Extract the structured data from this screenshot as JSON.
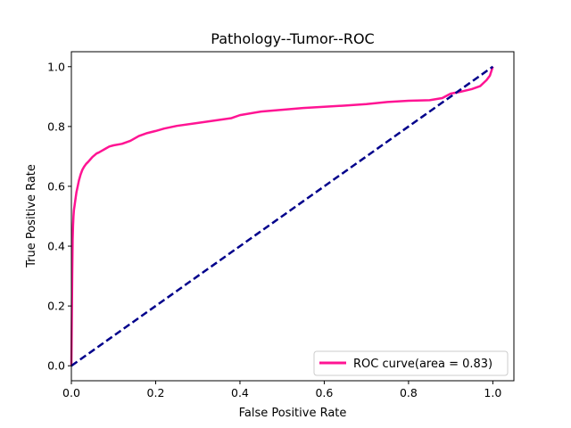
{
  "chart_data": {
    "type": "line",
    "title": "Pathology--Tumor--ROC",
    "xlabel": "False Positive Rate",
    "ylabel": "True Positive Rate",
    "xlim": [
      0.0,
      1.05
    ],
    "ylim": [
      -0.05,
      1.05
    ],
    "xticks": [
      "0.0",
      "0.2",
      "0.4",
      "0.6",
      "0.8",
      "1.0"
    ],
    "yticks": [
      "0.0",
      "0.2",
      "0.4",
      "0.6",
      "0.8",
      "1.0"
    ],
    "grid": false,
    "legend_position": "lower right",
    "series": [
      {
        "name": "ROC curve(area = 0.83)",
        "color": "#ff1493",
        "style": "solid",
        "x": [
          0.0,
          0.002,
          0.003,
          0.004,
          0.005,
          0.006,
          0.008,
          0.01,
          0.012,
          0.015,
          0.018,
          0.022,
          0.026,
          0.03,
          0.035,
          0.04,
          0.045,
          0.05,
          0.055,
          0.06,
          0.065,
          0.07,
          0.08,
          0.09,
          0.1,
          0.12,
          0.14,
          0.16,
          0.18,
          0.2,
          0.22,
          0.25,
          0.3,
          0.35,
          0.38,
          0.4,
          0.45,
          0.5,
          0.55,
          0.6,
          0.65,
          0.7,
          0.75,
          0.8,
          0.85,
          0.88,
          0.9,
          0.92,
          0.95,
          0.97,
          0.985,
          0.993,
          1.0
        ],
        "y": [
          0.0,
          0.3,
          0.42,
          0.47,
          0.5,
          0.52,
          0.54,
          0.56,
          0.58,
          0.6,
          0.62,
          0.64,
          0.655,
          0.665,
          0.675,
          0.682,
          0.69,
          0.698,
          0.704,
          0.71,
          0.713,
          0.717,
          0.725,
          0.733,
          0.737,
          0.742,
          0.752,
          0.768,
          0.778,
          0.785,
          0.793,
          0.802,
          0.812,
          0.822,
          0.828,
          0.838,
          0.85,
          0.856,
          0.862,
          0.866,
          0.87,
          0.875,
          0.882,
          0.886,
          0.888,
          0.895,
          0.91,
          0.915,
          0.925,
          0.935,
          0.955,
          0.97,
          1.0
        ]
      },
      {
        "name": "",
        "color": "#00008b",
        "style": "dashed",
        "x": [
          0.0,
          1.0
        ],
        "y": [
          0.0,
          1.0
        ]
      }
    ]
  }
}
